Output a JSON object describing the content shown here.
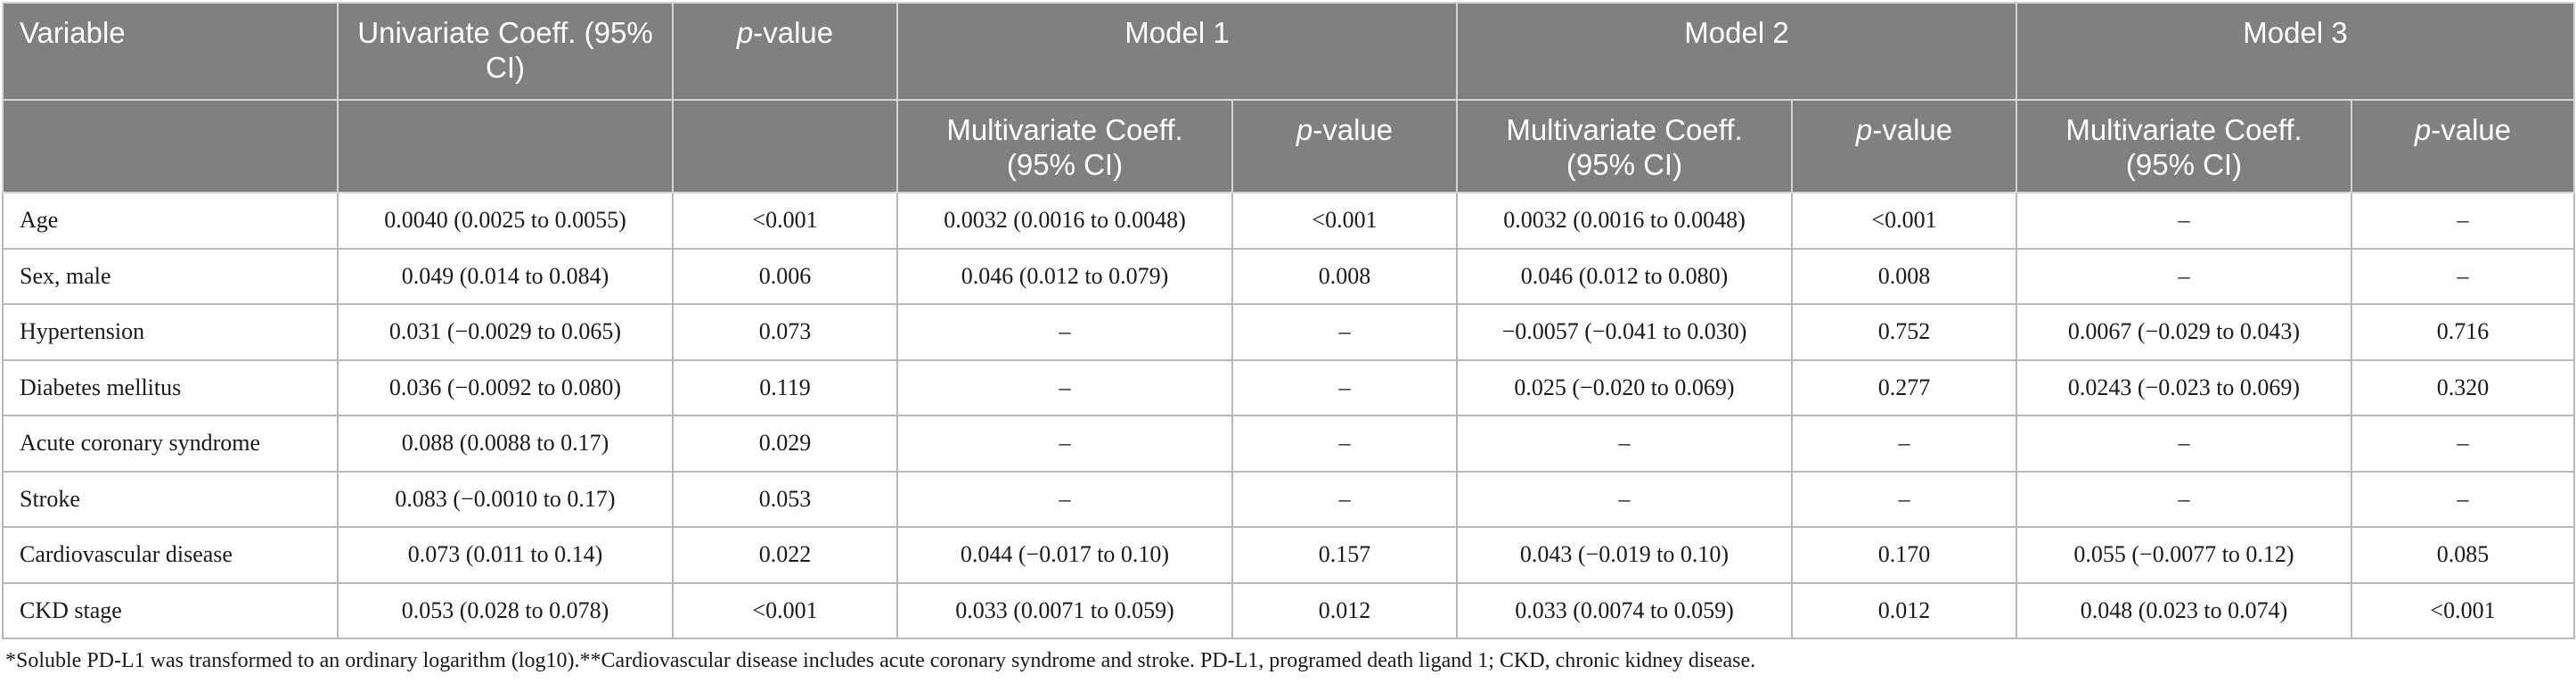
{
  "header": {
    "variable": "Variable",
    "univariate": "Univariate Coeff. (95% CI)",
    "pvalue_italic": "p",
    "pvalue_suffix": "-value",
    "model1": "Model 1",
    "model2": "Model 2",
    "model3": "Model 3",
    "multivariate": "Multivariate Coeff. (95% CI)"
  },
  "rows": [
    {
      "variable": "Age",
      "uni_coef": "0.0040 (0.0025 to 0.0055)",
      "uni_p": "<0.001",
      "m1_coef": "0.0032 (0.0016 to 0.0048)",
      "m1_p": "<0.001",
      "m2_coef": "0.0032 (0.0016 to 0.0048)",
      "m2_p": "<0.001",
      "m3_coef": "–",
      "m3_p": "–"
    },
    {
      "variable": "Sex, male",
      "uni_coef": "0.049 (0.014 to 0.084)",
      "uni_p": "0.006",
      "m1_coef": "0.046 (0.012 to 0.079)",
      "m1_p": "0.008",
      "m2_coef": "0.046 (0.012 to 0.080)",
      "m2_p": "0.008",
      "m3_coef": "–",
      "m3_p": "–"
    },
    {
      "variable": "Hypertension",
      "uni_coef": "0.031 (−0.0029 to 0.065)",
      "uni_p": "0.073",
      "m1_coef": "–",
      "m1_p": "–",
      "m2_coef": "−0.0057 (−0.041 to 0.030)",
      "m2_p": "0.752",
      "m3_coef": "0.0067 (−0.029 to 0.043)",
      "m3_p": "0.716"
    },
    {
      "variable": "Diabetes mellitus",
      "uni_coef": "0.036 (−0.0092 to 0.080)",
      "uni_p": "0.119",
      "m1_coef": "–",
      "m1_p": "–",
      "m2_coef": "0.025 (−0.020 to 0.069)",
      "m2_p": "0.277",
      "m3_coef": "0.0243 (−0.023 to 0.069)",
      "m3_p": "0.320"
    },
    {
      "variable": "Acute coronary syndrome",
      "uni_coef": "0.088 (0.0088 to 0.17)",
      "uni_p": "0.029",
      "m1_coef": "–",
      "m1_p": "–",
      "m2_coef": "–",
      "m2_p": "–",
      "m3_coef": "–",
      "m3_p": "–"
    },
    {
      "variable": "Stroke",
      "uni_coef": "0.083 (−0.0010 to 0.17)",
      "uni_p": "0.053",
      "m1_coef": "–",
      "m1_p": "–",
      "m2_coef": "–",
      "m2_p": "–",
      "m3_coef": "–",
      "m3_p": "–"
    },
    {
      "variable": "Cardiovascular disease",
      "uni_coef": "0.073 (0.011 to 0.14)",
      "uni_p": "0.022",
      "m1_coef": "0.044 (−0.017 to 0.10)",
      "m1_p": "0.157",
      "m2_coef": "0.043 (−0.019 to 0.10)",
      "m2_p": "0.170",
      "m3_coef": "0.055 (−0.0077 to 0.12)",
      "m3_p": "0.085"
    },
    {
      "variable": "CKD stage",
      "uni_coef": "0.053 (0.028 to 0.078)",
      "uni_p": "<0.001",
      "m1_coef": "0.033 (0.0071 to 0.059)",
      "m1_p": "0.012",
      "m2_coef": "0.033 (0.0074 to 0.059)",
      "m2_p": "0.012",
      "m3_coef": "0.048 (0.023 to 0.074)",
      "m3_p": "<0.001"
    }
  ],
  "footnote": "*Soluble PD-L1 was transformed to an ordinary logarithm (log10).**Cardiovascular disease includes acute coronary syndrome and stroke. PD-L1, programed death ligand 1; CKD, chronic kidney disease.",
  "colors": {
    "header_bg": "#808080",
    "header_text": "#ffffff",
    "border": "#b8b8b8"
  }
}
